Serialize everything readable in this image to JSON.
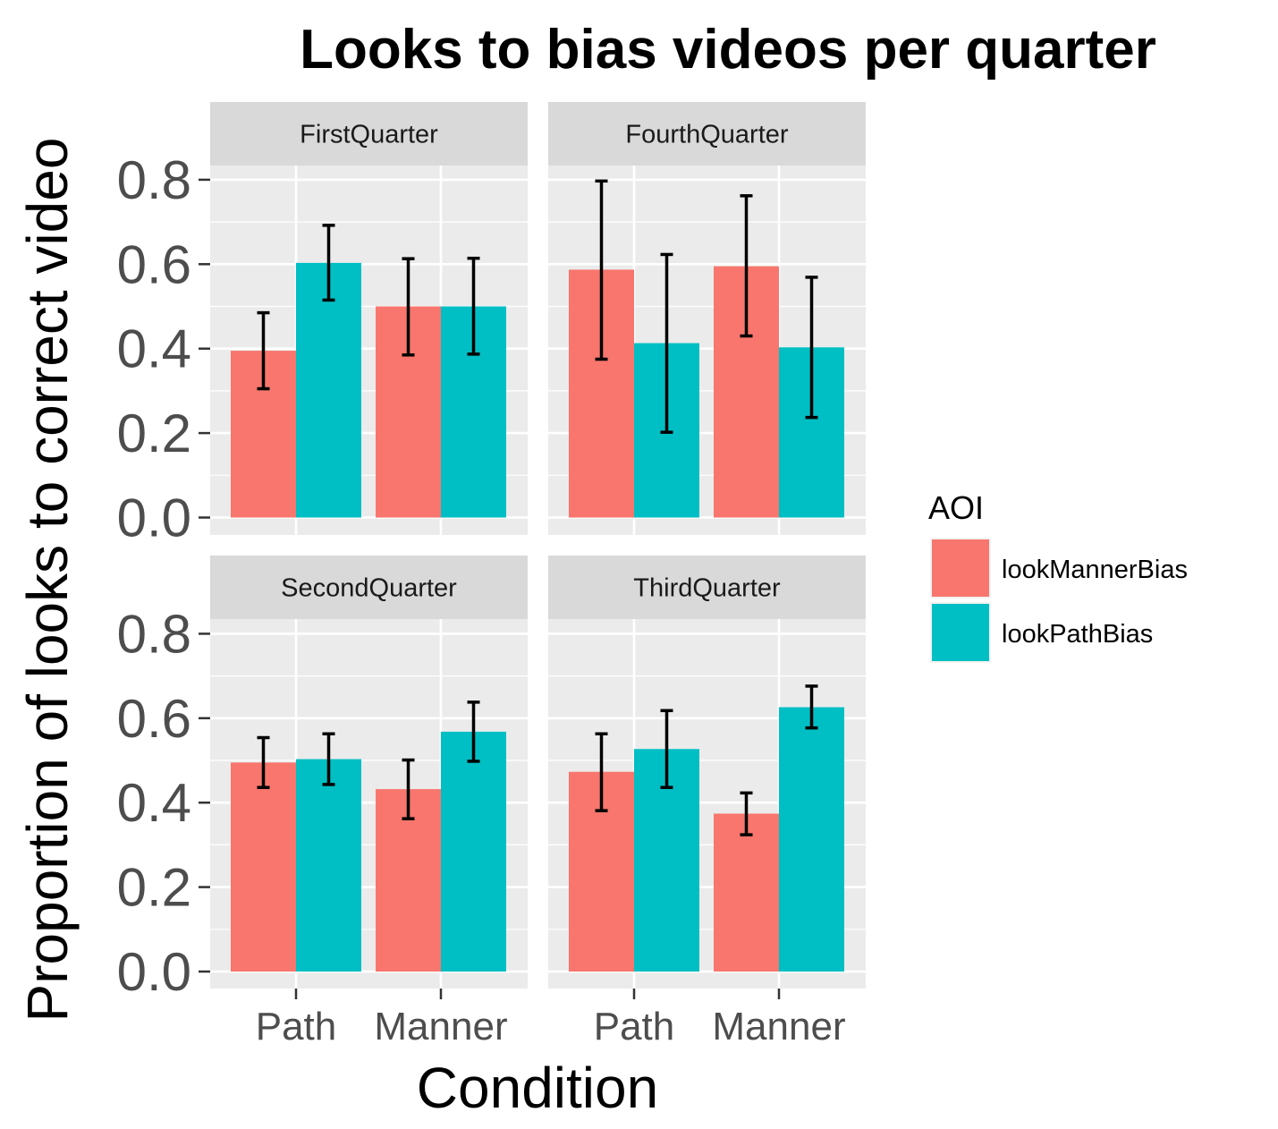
{
  "chart_data": {
    "type": "bar",
    "title": "Looks to bias videos per quarter",
    "xlabel": "Condition",
    "ylabel": "Proportion of looks to correct video",
    "ylim": [
      0,
      0.8
    ],
    "yticks": [
      "0.0",
      "0.2",
      "0.4",
      "0.6",
      "0.8"
    ],
    "grid": true,
    "categories": [
      "Path",
      "Manner"
    ],
    "legend": {
      "title": "AOI",
      "position": "right",
      "items": [
        {
          "label": "lookMannerBias",
          "color": "#F8766D"
        },
        {
          "label": "lookPathBias",
          "color": "#00BFC4"
        }
      ]
    },
    "facets": [
      {
        "name": "FirstQuarter",
        "series": [
          {
            "name": "lookMannerBias",
            "values": [
              0.395,
              0.5
            ],
            "err_low": [
              0.305,
              0.385
            ],
            "err_high": [
              0.485,
              0.613
            ]
          },
          {
            "name": "lookPathBias",
            "values": [
              0.603,
              0.5
            ],
            "err_low": [
              0.515,
              0.387
            ],
            "err_high": [
              0.692,
              0.614
            ]
          }
        ]
      },
      {
        "name": "FourthQuarter",
        "series": [
          {
            "name": "lookMannerBias",
            "values": [
              0.587,
              0.595
            ],
            "err_low": [
              0.375,
              0.43
            ],
            "err_high": [
              0.797,
              0.762
            ]
          },
          {
            "name": "lookPathBias",
            "values": [
              0.413,
              0.403
            ],
            "err_low": [
              0.202,
              0.237
            ],
            "err_high": [
              0.623,
              0.569
            ]
          }
        ]
      },
      {
        "name": "SecondQuarter",
        "series": [
          {
            "name": "lookMannerBias",
            "values": [
              0.495,
              0.432
            ],
            "err_low": [
              0.436,
              0.362
            ],
            "err_high": [
              0.554,
              0.501
            ]
          },
          {
            "name": "lookPathBias",
            "values": [
              0.503,
              0.568
            ],
            "err_low": [
              0.443,
              0.498
            ],
            "err_high": [
              0.563,
              0.638
            ]
          }
        ]
      },
      {
        "name": "ThirdQuarter",
        "series": [
          {
            "name": "lookMannerBias",
            "values": [
              0.473,
              0.374
            ],
            "err_low": [
              0.381,
              0.324
            ],
            "err_high": [
              0.563,
              0.423
            ]
          },
          {
            "name": "lookPathBias",
            "values": [
              0.527,
              0.626
            ],
            "err_low": [
              0.436,
              0.577
            ],
            "err_high": [
              0.618,
              0.676
            ]
          }
        ]
      }
    ]
  }
}
